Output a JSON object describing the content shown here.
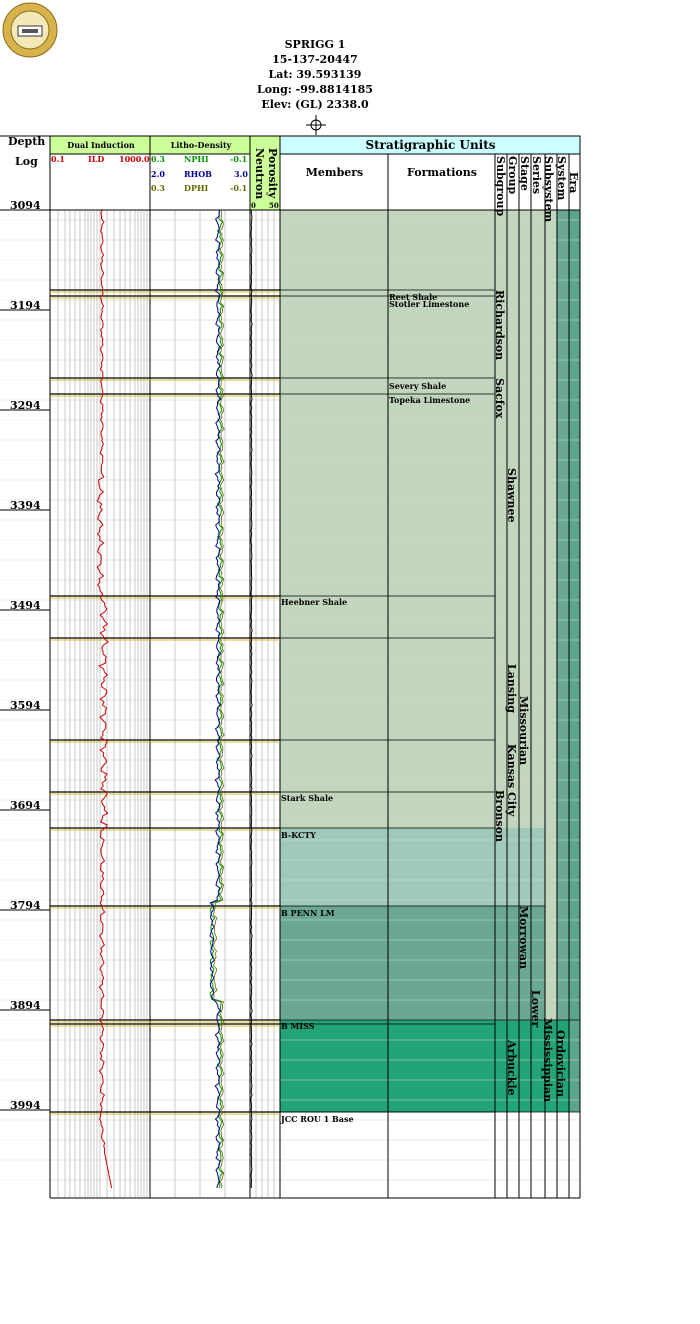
{
  "header": {
    "well_name": "SPRIGG 1",
    "api": "15-137-20447",
    "lat": "Lat: 39.593139",
    "long": "Long: -99.8814185",
    "elev": "Elev: (GL) 2338.0"
  },
  "logo": {
    "name": "kansas-geological-survey-seal",
    "text": "KANSAS GEOLOGICAL SURVEY"
  },
  "columns": {
    "depth_title": "Depth",
    "log_title": "Log",
    "top_depth": "3094",
    "dual_induction": "Dual Induction",
    "ild_min": "0.1",
    "ild_name": "ILD",
    "ild_max": "1000.0",
    "litho_density": "Litho-Density",
    "nphi_min": "0.3",
    "nphi_name": "NPHI",
    "nphi_max": "-0.1",
    "rhob_min": "2.0",
    "rhob_name": "RHOB",
    "rhob_max": "3.0",
    "dphi_min": "0.3",
    "dphi_name": "DPHI",
    "dphi_max": "-0.1",
    "porosity": "Porosity",
    "neutron": "Neutron",
    "neutron_min": "0",
    "neutron_max": "50",
    "strat_units": "Stratigraphic Units",
    "members": "Members",
    "formations": "Formations",
    "subgroup": "Subgroup",
    "group": "Group",
    "stage": "Stage",
    "series": "Series",
    "subsystem": "Subsystem",
    "system": "System",
    "era": "Era"
  },
  "depth_labels": [
    "3194",
    "3294",
    "3394",
    "3494",
    "3594",
    "3694",
    "3794",
    "3894",
    "3994"
  ],
  "formation_labels": [
    "Reet Shale",
    "Stotler Limestone",
    "Severy Shale",
    "Topeka Limestone"
  ],
  "member_labels": [
    "Heebner Shale",
    "Stark Shale",
    "B-KCTY",
    "B PENN LM",
    "B MISS",
    "JCC ROU 1 Base"
  ],
  "unit_labels": {
    "richardson": "Richardson",
    "sacfox": "Sacfox",
    "shawnee": "Shawnee",
    "lansing": "Lansing",
    "missourian": "Missourian",
    "kansas_city": "Kansas City",
    "bronson": "Bronson",
    "morrowan": "Morrowan",
    "lower": "Lower",
    "mississippian": "Mississippian",
    "ordovician": "Ordovician",
    "arbuckle": "Arbuckle"
  },
  "colors": {
    "header_green": "#ccff99",
    "header_cyan": "#ccffff",
    "ild_curve": "#cc0000",
    "nphi_curve": "#009900",
    "rhob_curve": "#000099",
    "dphi_curve": "#666600",
    "penn_fill": "#c2d5bd",
    "kc_fill": "#9fc9bb",
    "morrow_fill": "#6aa894",
    "miss_fill": "#22a37a"
  }
}
